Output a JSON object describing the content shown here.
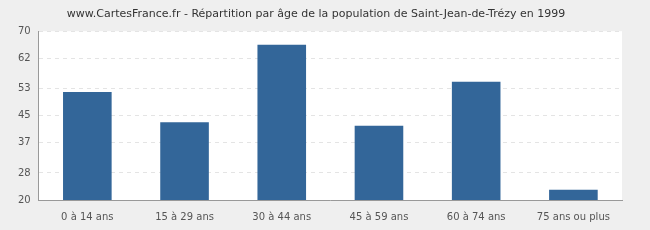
{
  "chart_data": {
    "type": "bar",
    "title": "www.CartesFrance.fr - Répartition par âge de la population de Saint-Jean-de-Trézy en 1999",
    "categories": [
      "0 à 14 ans",
      "15 à 29 ans",
      "30 à 44 ans",
      "45 à 59 ans",
      "60 à 74 ans",
      "75 ans ou plus"
    ],
    "values": [
      52,
      43,
      66,
      42,
      55,
      23
    ],
    "color": "#336699",
    "ylim": [
      20,
      70
    ],
    "yticks": [
      20,
      28,
      37,
      45,
      53,
      62,
      70
    ],
    "grid": true
  }
}
